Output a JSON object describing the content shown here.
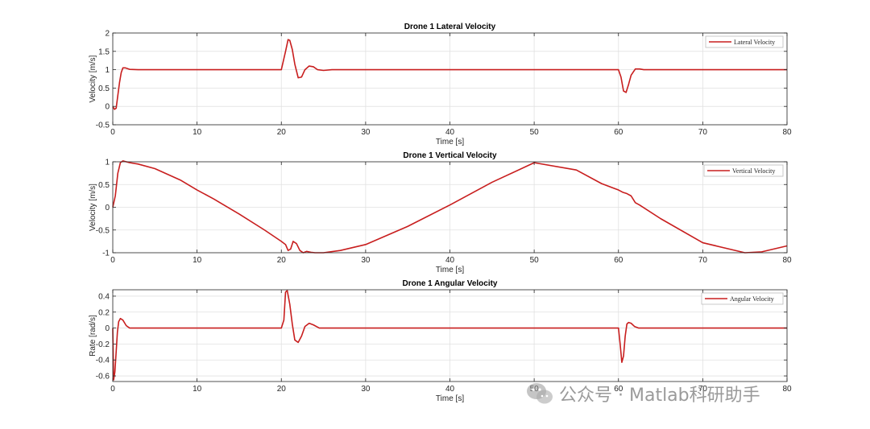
{
  "watermark": {
    "text": "公众号 · Matlab科研助手"
  },
  "colors": {
    "line": "#c81e1e",
    "axis": "#262626",
    "grid": "#e1e1e1",
    "box": "#f0f0f0"
  },
  "chart_data": [
    {
      "type": "line",
      "title": "Drone 1 Lateral Velocity",
      "xlabel": "Time [s]",
      "ylabel": "Velocity [m/s]",
      "xlim": [
        0,
        80
      ],
      "ylim": [
        -0.5,
        2
      ],
      "xticks": [
        0,
        10,
        20,
        30,
        40,
        50,
        60,
        70,
        80
      ],
      "yticks": [
        -0.5,
        0,
        0.5,
        1,
        1.5,
        2
      ],
      "ytick_labels": [
        "-0.5",
        "0",
        "0.5",
        "1",
        "1.5",
        "2"
      ],
      "grid": true,
      "legend_position": "top-right",
      "series": [
        {
          "name": "Lateral Velocity",
          "x": [
            0,
            0.2,
            0.4,
            0.6,
            0.8,
            1.0,
            1.2,
            1.5,
            2.0,
            3,
            10,
            20,
            20.5,
            20.8,
            21.0,
            21.3,
            21.6,
            22.0,
            22.4,
            22.8,
            23.3,
            23.8,
            24.3,
            25,
            26,
            30,
            60,
            60.3,
            60.6,
            60.9,
            61.2,
            61.5,
            62,
            62.5,
            63,
            80
          ],
          "y": [
            0,
            -0.08,
            -0.05,
            0.3,
            0.65,
            0.92,
            1.05,
            1.05,
            1.01,
            1.0,
            1.0,
            1.0,
            1.5,
            1.82,
            1.8,
            1.55,
            1.15,
            0.78,
            0.8,
            1.0,
            1.1,
            1.08,
            1.0,
            0.98,
            1.0,
            1.0,
            1.0,
            0.8,
            0.42,
            0.38,
            0.6,
            0.85,
            1.02,
            1.02,
            1.0,
            1.0
          ]
        }
      ]
    },
    {
      "type": "line",
      "title": "Drone 1 Vertical Velocity",
      "xlabel": "Time [s]",
      "ylabel": "Velocity [m/s]",
      "xlim": [
        0,
        80
      ],
      "ylim": [
        -1,
        1
      ],
      "xticks": [
        0,
        10,
        20,
        30,
        40,
        50,
        60,
        70,
        80
      ],
      "yticks": [
        -1,
        -0.5,
        0,
        0.5,
        1
      ],
      "ytick_labels": [
        "-1",
        "-0.5",
        "0",
        "0.5",
        "1"
      ],
      "grid": true,
      "legend_position": "top-right",
      "series": [
        {
          "name": "Vertical Velocity",
          "x": [
            0,
            0.3,
            0.6,
            0.9,
            1.2,
            1.6,
            2.0,
            3,
            5,
            8,
            10,
            12,
            15,
            18,
            20,
            20.5,
            20.8,
            21.1,
            21.4,
            21.8,
            22.2,
            22.6,
            23.0,
            23.5,
            24.0,
            25,
            27,
            30,
            35,
            40,
            45,
            50,
            55,
            58,
            60,
            60.5,
            61.0,
            61.5,
            62.0,
            62.5,
            65,
            70,
            75,
            77,
            80
          ],
          "y": [
            0,
            0.25,
            0.75,
            0.98,
            1.02,
            1.0,
            0.98,
            0.95,
            0.85,
            0.6,
            0.38,
            0.18,
            -0.15,
            -0.5,
            -0.75,
            -0.82,
            -0.95,
            -0.92,
            -0.75,
            -0.8,
            -0.95,
            -1.0,
            -0.97,
            -0.99,
            -1.0,
            -1.0,
            -0.95,
            -0.82,
            -0.42,
            0.05,
            0.55,
            0.98,
            0.82,
            0.52,
            0.38,
            0.33,
            0.3,
            0.25,
            0.1,
            0.05,
            -0.25,
            -0.78,
            -1.0,
            -0.98,
            -0.85
          ]
        }
      ]
    },
    {
      "type": "line",
      "title": "Drone 1 Angular Velocity",
      "xlabel": "Time [s]",
      "ylabel": "Rate [rad/s]",
      "xlim": [
        0,
        80
      ],
      "ylim": [
        -0.67,
        0.48
      ],
      "xticks": [
        0,
        10,
        20,
        30,
        40,
        50,
        60,
        70,
        80
      ],
      "yticks": [
        -0.6,
        -0.4,
        -0.2,
        0,
        0.2,
        0.4
      ],
      "ytick_labels": [
        "-0.6",
        "-0.4",
        "-0.2",
        "0",
        "0.2",
        "0.4"
      ],
      "grid": true,
      "legend_position": "top-right",
      "series": [
        {
          "name": "Angular Velocity",
          "x": [
            0,
            0.1,
            0.25,
            0.4,
            0.55,
            0.7,
            0.9,
            1.2,
            1.6,
            2.0,
            3,
            10,
            20,
            20.3,
            20.5,
            20.7,
            21.0,
            21.3,
            21.6,
            22.0,
            22.4,
            22.8,
            23.3,
            23.8,
            24.5,
            26,
            30,
            60,
            60.2,
            60.4,
            60.6,
            60.8,
            61.0,
            61.2,
            61.5,
            61.9,
            62.4,
            63,
            80
          ],
          "y": [
            0,
            -0.65,
            -0.55,
            -0.3,
            -0.05,
            0.08,
            0.12,
            0.1,
            0.03,
            0.0,
            0.0,
            0.0,
            0.0,
            0.1,
            0.45,
            0.47,
            0.3,
            0.05,
            -0.15,
            -0.18,
            -0.1,
            0.02,
            0.06,
            0.04,
            0.0,
            0.0,
            0.0,
            0.0,
            -0.2,
            -0.43,
            -0.35,
            -0.1,
            0.05,
            0.07,
            0.06,
            0.02,
            0.0,
            0.0,
            0.0
          ]
        }
      ]
    }
  ]
}
